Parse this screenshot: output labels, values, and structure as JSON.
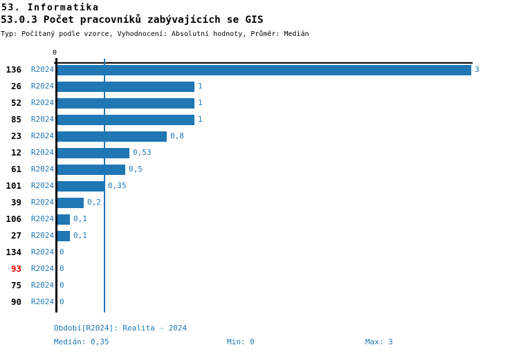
{
  "header": {
    "title": "53. Informatika",
    "subtitle": "53.0.3 Počet pracovníků zabývajících se GIS",
    "meta": "Typ: Počítaný podle vzorce, Vyhodnocení: Absolutní hodnoty, Průměr: Medián"
  },
  "colors": {
    "accent_blue": "#1f77b4",
    "bar_blue": "#1f77b4",
    "highlight_red": "#ee0000",
    "axis_black": "#000000"
  },
  "chart_data": {
    "type": "bar",
    "orientation": "horizontal",
    "title": "53.0.3 Počet pracovníků zabývajících se GIS",
    "xlim": [
      0,
      3
    ],
    "x_tick_labels": [
      "0"
    ],
    "median_value": 0.35,
    "series_label": "R2024",
    "categories": [
      "136",
      "26",
      "52",
      "85",
      "23",
      "12",
      "61",
      "101",
      "39",
      "106",
      "27",
      "134",
      "93",
      "75",
      "90"
    ],
    "values": [
      3,
      1,
      1,
      1,
      0.8,
      0.53,
      0.5,
      0.35,
      0.2,
      0.1,
      0.1,
      0,
      0,
      0,
      0
    ],
    "rows": [
      {
        "category": "136",
        "period": "R2024",
        "value": 3,
        "value_label": "3",
        "highlight": false
      },
      {
        "category": "26",
        "period": "R2024",
        "value": 1,
        "value_label": "1",
        "highlight": false
      },
      {
        "category": "52",
        "period": "R2024",
        "value": 1,
        "value_label": "1",
        "highlight": false
      },
      {
        "category": "85",
        "period": "R2024",
        "value": 1,
        "value_label": "1",
        "highlight": false
      },
      {
        "category": "23",
        "period": "R2024",
        "value": 0.8,
        "value_label": "0,8",
        "highlight": false
      },
      {
        "category": "12",
        "period": "R2024",
        "value": 0.53,
        "value_label": "0,53",
        "highlight": false
      },
      {
        "category": "61",
        "period": "R2024",
        "value": 0.5,
        "value_label": "0,5",
        "highlight": false
      },
      {
        "category": "101",
        "period": "R2024",
        "value": 0.35,
        "value_label": "0,35",
        "highlight": false
      },
      {
        "category": "39",
        "period": "R2024",
        "value": 0.2,
        "value_label": "0,2",
        "highlight": false
      },
      {
        "category": "106",
        "period": "R2024",
        "value": 0.1,
        "value_label": "0,1",
        "highlight": false
      },
      {
        "category": "27",
        "period": "R2024",
        "value": 0.1,
        "value_label": "0,1",
        "highlight": false
      },
      {
        "category": "134",
        "period": "R2024",
        "value": 0,
        "value_label": "0",
        "highlight": false
      },
      {
        "category": "93",
        "period": "R2024",
        "value": 0,
        "value_label": "0",
        "highlight": true
      },
      {
        "category": "75",
        "period": "R2024",
        "value": 0,
        "value_label": "0",
        "highlight": false
      },
      {
        "category": "90",
        "period": "R2024",
        "value": 0,
        "value_label": "0",
        "highlight": false
      }
    ]
  },
  "footer": {
    "period_caption": "Období[R2024]: Realita - 2024",
    "median_stat": "Medián: 0,35",
    "min_stat": "Min: 0",
    "max_stat": "Max: 3"
  }
}
